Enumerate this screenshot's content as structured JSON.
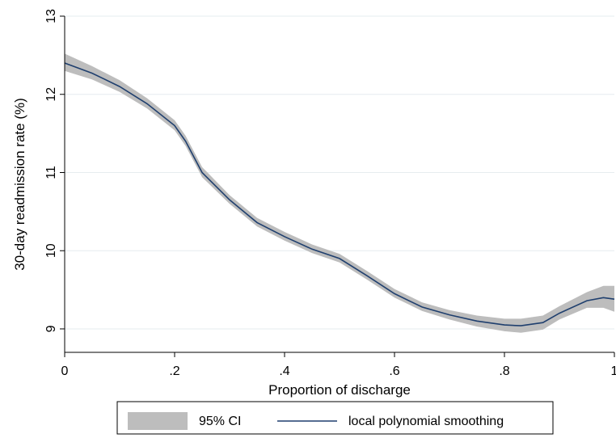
{
  "chart_data": {
    "type": "line",
    "xlabel": "Proportion of discharge",
    "ylabel": "30-day readmission rate (%)",
    "xlim": [
      0,
      1
    ],
    "ylim": [
      8.7,
      13
    ],
    "xticks": [
      0,
      0.2,
      0.4,
      0.6,
      0.8,
      1
    ],
    "xtick_labels": [
      "0",
      ".2",
      ".4",
      ".6",
      ".8",
      "1"
    ],
    "yticks": [
      9,
      10,
      11,
      12,
      13
    ],
    "ytick_labels": [
      "9",
      "10",
      "11",
      "12",
      "13"
    ],
    "grid": "horizontal",
    "legend_position": "bottom",
    "colors": {
      "line": "#1f3f6e",
      "band": "#bdbdbd",
      "grid": "#e6ecef"
    },
    "series": [
      {
        "name": "local polynomial smoothing",
        "x": [
          0,
          0.05,
          0.1,
          0.15,
          0.2,
          0.22,
          0.25,
          0.3,
          0.35,
          0.4,
          0.45,
          0.5,
          0.55,
          0.6,
          0.65,
          0.7,
          0.75,
          0.8,
          0.83,
          0.87,
          0.9,
          0.95,
          0.98,
          1.0
        ],
        "y": [
          12.4,
          12.27,
          12.1,
          11.88,
          11.6,
          11.4,
          11.0,
          10.65,
          10.36,
          10.18,
          10.02,
          9.9,
          9.68,
          9.45,
          9.28,
          9.18,
          9.1,
          9.05,
          9.04,
          9.08,
          9.2,
          9.36,
          9.4,
          9.38
        ]
      }
    ],
    "ci_band": {
      "name": "95% CI",
      "x": [
        0,
        0.05,
        0.1,
        0.15,
        0.2,
        0.22,
        0.25,
        0.3,
        0.35,
        0.4,
        0.45,
        0.5,
        0.55,
        0.6,
        0.65,
        0.7,
        0.75,
        0.8,
        0.83,
        0.87,
        0.9,
        0.95,
        0.98,
        1.0
      ],
      "lower": [
        12.3,
        12.19,
        12.03,
        11.82,
        11.54,
        11.34,
        10.94,
        10.6,
        10.31,
        10.13,
        9.97,
        9.85,
        9.63,
        9.4,
        9.23,
        9.12,
        9.03,
        8.97,
        8.95,
        8.99,
        9.12,
        9.27,
        9.27,
        9.22
      ],
      "upper": [
        12.52,
        12.36,
        12.18,
        11.95,
        11.67,
        11.47,
        11.07,
        10.71,
        10.42,
        10.24,
        10.08,
        9.96,
        9.74,
        9.51,
        9.34,
        9.24,
        9.17,
        9.13,
        9.13,
        9.17,
        9.29,
        9.47,
        9.55,
        9.55
      ]
    },
    "legend": {
      "ci_label": "95% CI",
      "line_label": "local polynomial smoothing"
    }
  }
}
